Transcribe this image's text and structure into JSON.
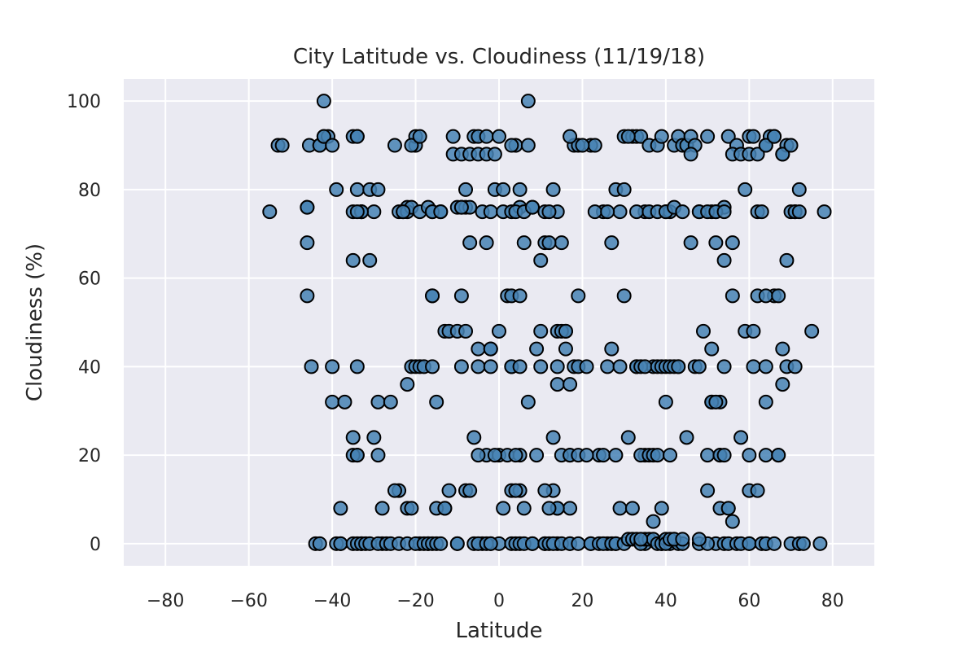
{
  "chart_data": {
    "type": "scatter",
    "title": "City Latitude vs. Cloudiness (11/19/18)",
    "xlabel": "Latitude",
    "ylabel": "Cloudiness (%)",
    "xlim": [
      -90,
      90
    ],
    "ylim": [
      -5,
      105
    ],
    "xticks": [
      -80,
      -60,
      -40,
      -20,
      0,
      20,
      40,
      60,
      80
    ],
    "xtick_labels": [
      "−80",
      "−60",
      "−40",
      "−20",
      "0",
      "20",
      "40",
      "60",
      "80"
    ],
    "yticks": [
      0,
      20,
      40,
      60,
      80,
      100
    ],
    "ytick_labels": [
      "0",
      "20",
      "40",
      "60",
      "80",
      "100"
    ],
    "grid": true,
    "background": "#eaeaf2",
    "marker_fill": "#4682b4",
    "marker_edge": "#000000",
    "x": [
      -55,
      -53,
      -52,
      -46,
      -46,
      -45.5,
      -43,
      -43,
      -42,
      -41,
      -39,
      -35,
      -35,
      -34,
      -34,
      -33,
      -33,
      -31,
      -30,
      -24,
      -23,
      -22,
      -22,
      -21,
      -20,
      -20,
      -19,
      -17,
      -16,
      -14,
      -11,
      -10,
      -9,
      -8,
      -8,
      -7,
      -6,
      -5,
      -4,
      -3,
      -2,
      -1,
      0,
      1,
      3,
      4,
      5,
      5,
      7,
      8,
      10,
      11,
      13,
      14,
      15,
      18,
      19,
      22,
      23,
      25,
      27,
      29,
      30,
      32,
      33,
      34,
      35,
      36,
      38,
      39,
      40,
      41,
      42,
      43,
      44,
      45,
      46,
      47,
      48,
      50,
      51,
      52,
      54,
      55,
      57,
      59,
      60,
      61,
      62,
      63,
      64,
      65,
      66,
      68,
      69,
      70,
      71,
      72,
      -42,
      -40,
      -34,
      -33,
      -31,
      -29,
      -25,
      -23,
      -21,
      -19,
      -16,
      -14,
      -11,
      -9,
      -7,
      -5,
      -3,
      -1,
      1,
      3,
      4,
      6,
      8,
      11,
      12,
      17,
      20,
      23,
      26,
      28,
      30,
      31,
      33,
      36,
      38,
      40,
      42,
      44,
      46,
      48,
      50,
      52,
      54,
      56,
      58,
      60,
      62,
      64,
      66,
      68,
      70,
      71,
      72,
      75,
      78,
      -46,
      -35,
      -34,
      -13,
      -12,
      -10,
      -9,
      -8,
      -7,
      -5,
      -3,
      -2,
      3,
      6,
      10,
      12,
      14,
      27,
      33,
      37,
      40,
      43,
      46,
      49,
      51,
      52,
      54,
      56,
      59,
      61,
      66,
      68,
      69,
      -46,
      -16,
      -16,
      -9,
      2,
      3,
      5,
      16,
      19,
      30,
      56,
      62,
      64,
      67,
      -45,
      -40,
      -34,
      -21,
      -20,
      -19,
      -18,
      -16,
      -9,
      -5,
      -2,
      0,
      3,
      5,
      10,
      14,
      15,
      16,
      17,
      18,
      19,
      21,
      26,
      29,
      33,
      34,
      35,
      38,
      39,
      40,
      41,
      42,
      43,
      47,
      48,
      51,
      53,
      61,
      64,
      67,
      69,
      71,
      -40,
      -37,
      -29,
      -26,
      -22,
      -15,
      -2,
      7,
      9,
      13,
      14,
      16,
      17,
      24,
      50,
      51,
      52,
      53,
      54,
      60,
      64,
      68,
      -35,
      -34,
      -30,
      -24,
      -13,
      -6,
      -3,
      0,
      2,
      5,
      13,
      14,
      17,
      25,
      31,
      35,
      45,
      53,
      55,
      58,
      -38,
      -35,
      -34,
      -29,
      -28,
      -22,
      -21,
      -15,
      -12,
      -8,
      -5,
      -1,
      1,
      3,
      4,
      5,
      6,
      9,
      11,
      14,
      15,
      17,
      19,
      21,
      28,
      29,
      32,
      34,
      36,
      37,
      38,
      39,
      41,
      50,
      53,
      54,
      60,
      62,
      64,
      67,
      -44,
      -38,
      -33,
      -28,
      -25,
      -19,
      -17,
      -13,
      -10,
      -7,
      -4,
      -2,
      0,
      3,
      4,
      8,
      11,
      12,
      14,
      17,
      22,
      26,
      28,
      35,
      39,
      48,
      52,
      55,
      60,
      64,
      72,
      -43,
      -39,
      -38,
      -35,
      -34,
      -33,
      -32,
      -31,
      -29,
      -27,
      -26,
      -24,
      -22,
      -20,
      -18,
      -17,
      -16,
      -15,
      -14,
      -10,
      -6,
      -5,
      -3,
      -2,
      4,
      5,
      6,
      8,
      11,
      12,
      13,
      15,
      17,
      19,
      22,
      24,
      25,
      27,
      28,
      30,
      31,
      32,
      33,
      34,
      35,
      36,
      37,
      38,
      39,
      40,
      41,
      42,
      43,
      44,
      50,
      54,
      55,
      57,
      58,
      60,
      63,
      64,
      66,
      70,
      72,
      73,
      77,
      -42,
      7,
      34,
      37,
      40,
      41,
      42,
      44,
      48,
      56
    ],
    "y": [
      75,
      90,
      90,
      76,
      76,
      90,
      90,
      90,
      92,
      92,
      80,
      92,
      75,
      92,
      80,
      75,
      75,
      80,
      75,
      75,
      75,
      76,
      75,
      76,
      90,
      92,
      75,
      76,
      75,
      75,
      92,
      76,
      76,
      76,
      80,
      76,
      92,
      92,
      75,
      92,
      75,
      80,
      92,
      75,
      75,
      90,
      76,
      80,
      90,
      76,
      64,
      75,
      80,
      75,
      68,
      90,
      90,
      90,
      90,
      75,
      68,
      75,
      92,
      92,
      92,
      92,
      75,
      90,
      90,
      92,
      75,
      75,
      90,
      92,
      90,
      90,
      92,
      90,
      75,
      92,
      75,
      75,
      76,
      92,
      90,
      80,
      92,
      92,
      75,
      75,
      90,
      92,
      92,
      88,
      90,
      75,
      75,
      80,
      92,
      90,
      92,
      75,
      64,
      80,
      90,
      75,
      90,
      92,
      75,
      75,
      88,
      88,
      88,
      88,
      88,
      88,
      80,
      90,
      75,
      75,
      76,
      68,
      75,
      92,
      90,
      75,
      75,
      80,
      80,
      92,
      75,
      75,
      75,
      75,
      76,
      75,
      88,
      75,
      75,
      75,
      75,
      88,
      88,
      88,
      88,
      90,
      92,
      88,
      90,
      75,
      75,
      48,
      75,
      68,
      64,
      75,
      48,
      48,
      48,
      76,
      48,
      68,
      44,
      68,
      44,
      40,
      68,
      48,
      68,
      48,
      44,
      40,
      40,
      32,
      40,
      68,
      48,
      44,
      68,
      64,
      68,
      48,
      48,
      56,
      44,
      64,
      56,
      56,
      56,
      56,
      56,
      56,
      56,
      48,
      56,
      56,
      56,
      56,
      56,
      56,
      40,
      40,
      40,
      40,
      40,
      40,
      40,
      40,
      40,
      40,
      40,
      48,
      40,
      40,
      40,
      36,
      48,
      48,
      36,
      40,
      40,
      40,
      40,
      40,
      40,
      40,
      40,
      40,
      40,
      40,
      40,
      40,
      40,
      40,
      40,
      32,
      32,
      40,
      40,
      20,
      40,
      40,
      32,
      32,
      32,
      32,
      36,
      32,
      44,
      32,
      44,
      24,
      40,
      44,
      20,
      20,
      20,
      32,
      32,
      8,
      40,
      12,
      32,
      36,
      24,
      20,
      24,
      12,
      8,
      24,
      20,
      20,
      20,
      20,
      12,
      8,
      8,
      20,
      24,
      20,
      24,
      20,
      8,
      24,
      8,
      20,
      20,
      20,
      8,
      8,
      8,
      8,
      12,
      12,
      20,
      20,
      8,
      12,
      20,
      12,
      8,
      20,
      12,
      8,
      20,
      20,
      20,
      20,
      20,
      8,
      8,
      20,
      20,
      20,
      20,
      8,
      20,
      12,
      20,
      20,
      20,
      12,
      20,
      20,
      0,
      0,
      0,
      0,
      12,
      0,
      0,
      8,
      0,
      12,
      0,
      0,
      0,
      0,
      12,
      0,
      0,
      8,
      0,
      0,
      0,
      0,
      0,
      0,
      0,
      0,
      0,
      8,
      0,
      0,
      0,
      0,
      0,
      0,
      0,
      0,
      0,
      0,
      0,
      0,
      0,
      0,
      0,
      0,
      0,
      0,
      0,
      0,
      0,
      0,
      0,
      0,
      0,
      0,
      0,
      0,
      0,
      0,
      0,
      0,
      0,
      0,
      0,
      0,
      0,
      0,
      0,
      0,
      0,
      0,
      0,
      1,
      1,
      1,
      0,
      1,
      1,
      1,
      0,
      0,
      1,
      0,
      1,
      0,
      0,
      0,
      0,
      0,
      0,
      0,
      0,
      0,
      0,
      0,
      0,
      0,
      0,
      0,
      100,
      100,
      1,
      5,
      0,
      1,
      1,
      1,
      1,
      5
    ]
  }
}
